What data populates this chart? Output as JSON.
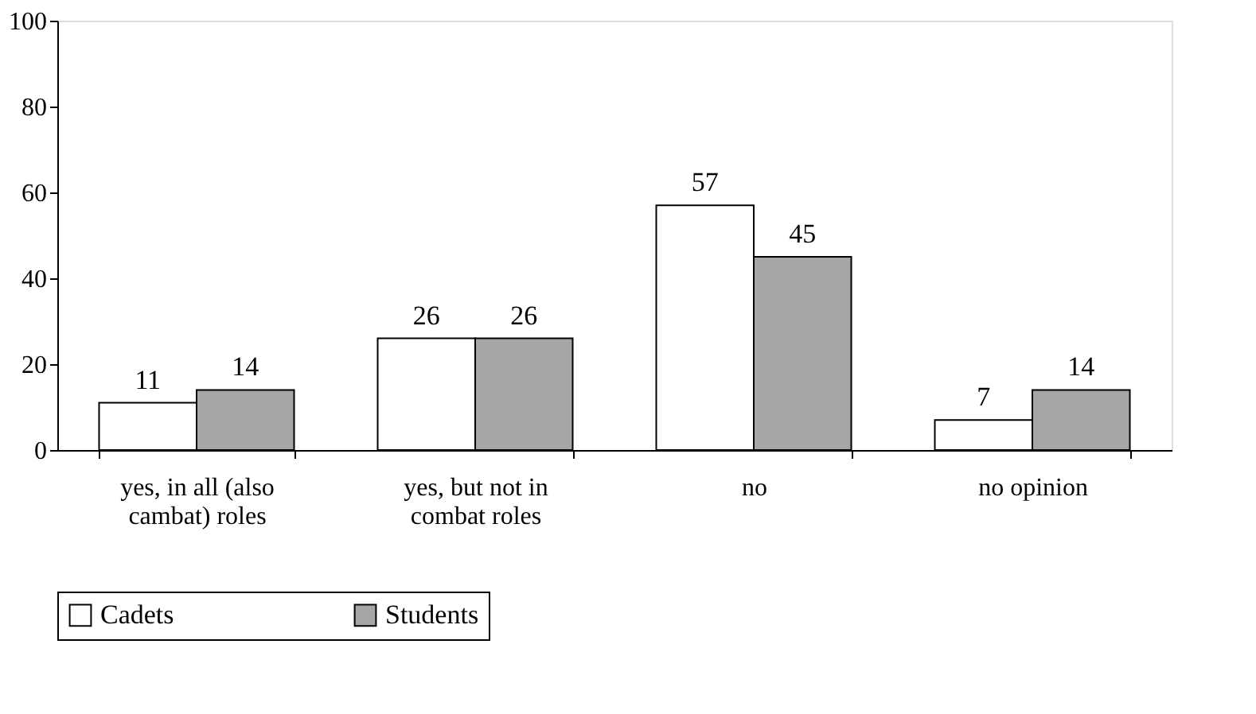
{
  "chart_data": {
    "type": "bar",
    "categories": [
      "yes, in all (also cambat) roles",
      "yes, but not in combat roles",
      "no",
      "no opinion"
    ],
    "series": [
      {
        "name": "Cadets",
        "color": "#ffffff",
        "values": [
          11,
          26,
          57,
          7
        ]
      },
      {
        "name": "Students",
        "color": "#a6a6a6",
        "values": [
          14,
          26,
          45,
          14
        ]
      }
    ],
    "ylim": [
      0,
      100
    ],
    "yticks": [
      0,
      20,
      40,
      60,
      80,
      100
    ],
    "grid": false,
    "legend": "bottom",
    "data_labels": true
  }
}
